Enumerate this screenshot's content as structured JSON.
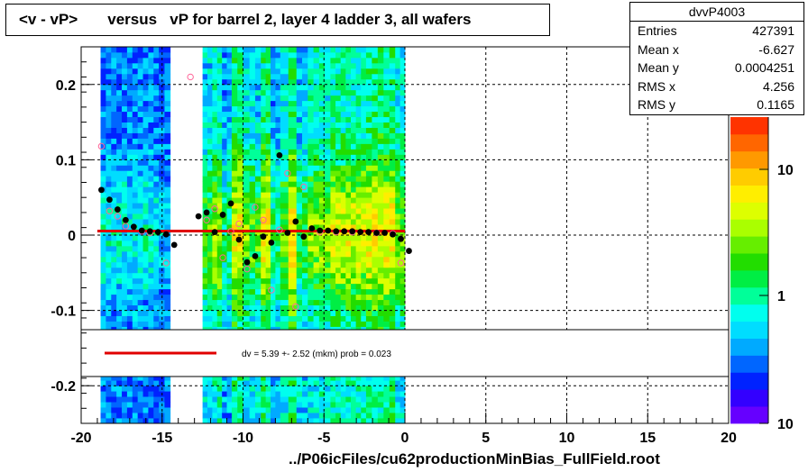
{
  "title": "<v - vP>       versus   vP for barrel 2, layer 4 ladder 3, all wafers",
  "footer": "../P06icFiles/cu62productionMinBias_FullField.root",
  "stats": {
    "name": "dvvP4003",
    "rows": [
      {
        "label": "Entries",
        "value": "427391"
      },
      {
        "label": "Mean x",
        "value": "-6.627"
      },
      {
        "label": "Mean y",
        "value": "0.0004251"
      },
      {
        "label": "RMS x",
        "value": "4.256"
      },
      {
        "label": "RMS y",
        "value": "0.1165"
      }
    ]
  },
  "legend": {
    "fit_text": "dv =    5.39 +-  2.52 (mkm) prob = 0.023"
  },
  "colorbar": {
    "ticks": [
      "10",
      "1",
      "10"
    ],
    "bottom_label": "10"
  },
  "colors": {
    "fit_line": "#e00000",
    "markers": "#000000",
    "open_markers": "#ff6699"
  },
  "chart_data": {
    "type": "heatmap",
    "title": "<v - vP>       versus   vP for barrel 2, layer 4 ladder 3, all wafers",
    "xlim": [
      -20,
      20
    ],
    "ylim": [
      -0.25,
      0.25
    ],
    "xticks": [
      -20,
      -15,
      -10,
      -5,
      0,
      5,
      10,
      15,
      20
    ],
    "yticks": [
      -0.2,
      -0.1,
      0,
      0.1,
      0.2
    ],
    "ytick_labels": [
      "-0.2",
      "-0.1",
      "0",
      "0.1",
      "0.2"
    ],
    "grid": true,
    "z_scale": "log",
    "heatmap_columns": [
      {
        "x0": -18.8,
        "x1": -15.2,
        "level": 0.35
      },
      {
        "x0": -15.2,
        "x1": -14.5,
        "level": 0.3
      },
      {
        "x0": -12.5,
        "x1": -11.9,
        "level": 0.55
      },
      {
        "x0": -11.9,
        "x1": -11.3,
        "level": 0.65
      },
      {
        "x0": -11.3,
        "x1": -10.7,
        "level": 0.45
      },
      {
        "x0": -10.7,
        "x1": -10.0,
        "level": 0.75
      },
      {
        "x0": -10.0,
        "x1": -9.6,
        "level": 0.6
      },
      {
        "x0": -9.6,
        "x1": -8.9,
        "level": 0.55
      },
      {
        "x0": -8.9,
        "x1": -8.3,
        "level": 0.75
      },
      {
        "x0": -8.3,
        "x1": -7.7,
        "level": 0.45
      },
      {
        "x0": -7.7,
        "x1": -7.2,
        "level": 0.6
      },
      {
        "x0": -7.2,
        "x1": -6.7,
        "level": 0.8
      },
      {
        "x0": -6.7,
        "x1": -6.0,
        "level": 0.5
      },
      {
        "x0": -6.0,
        "x1": -4.6,
        "level": 0.62
      },
      {
        "x0": -4.6,
        "x1": -2.4,
        "level": 0.7
      },
      {
        "x0": -2.4,
        "x1": -0.6,
        "level": 0.76
      },
      {
        "x0": -0.6,
        "x1": 0.0,
        "level": 0.6
      }
    ],
    "series": [
      {
        "marker": "filled-circle",
        "x": [
          -18.75,
          -18.25,
          -17.75,
          -17.25,
          -16.75,
          -16.25,
          -15.75,
          -15.25,
          -14.75,
          -14.25,
          -12.75,
          -12.25,
          -11.75,
          -11.25,
          -10.75,
          -10.25,
          -9.75,
          -9.25,
          -8.75,
          -8.25,
          -7.75,
          -7.25,
          -6.75,
          -6.25,
          -5.75,
          -5.25,
          -4.75,
          -4.25,
          -3.75,
          -3.25,
          -2.75,
          -2.25,
          -1.75,
          -1.25,
          -0.75,
          -0.25,
          0.25
        ],
        "y": [
          0.06,
          0.047,
          0.034,
          0.02,
          0.011,
          0.006,
          0.005,
          0.004,
          0.001,
          -0.013,
          0.025,
          0.03,
          0.004,
          0.027,
          0.042,
          -0.006,
          -0.036,
          -0.028,
          -0.002,
          -0.01,
          0.106,
          0.003,
          0.018,
          -0.002,
          0.009,
          0.006,
          0.006,
          0.005,
          0.005,
          0.005,
          0.004,
          0.004,
          0.003,
          0.003,
          0.001,
          -0.005,
          -0.021
        ]
      },
      {
        "marker": "open-circle",
        "x": [
          -18.75,
          -18.25,
          -17.75,
          -17.25,
          -16.25,
          -15.75,
          -14.75,
          -13.25,
          -12.25,
          -11.75,
          -11.25,
          -10.75,
          -10.25,
          -9.75,
          -9.25,
          -8.75,
          -8.25,
          -7.75,
          -7.25,
          -6.75,
          -6.25,
          -5.25,
          -4.25,
          -3.25,
          -1.75,
          -0.75,
          -0.25
        ],
        "y": [
          0.118,
          0.032,
          0.025,
          0.012,
          0.005,
          0.003,
          -0.037,
          0.21,
          0.02,
          0.035,
          -0.03,
          0.005,
          0.015,
          -0.045,
          0.037,
          0.02,
          -0.073,
          0.007,
          0.082,
          -0.095,
          0.064,
          0.004,
          0.004,
          0.004,
          0.003,
          0.002,
          -0.037
        ]
      }
    ],
    "fit": {
      "value_mkm": 5.39,
      "error_mkm": 2.52,
      "prob": 0.023,
      "y": 0.0054,
      "x_range": [
        -19,
        0
      ]
    }
  }
}
